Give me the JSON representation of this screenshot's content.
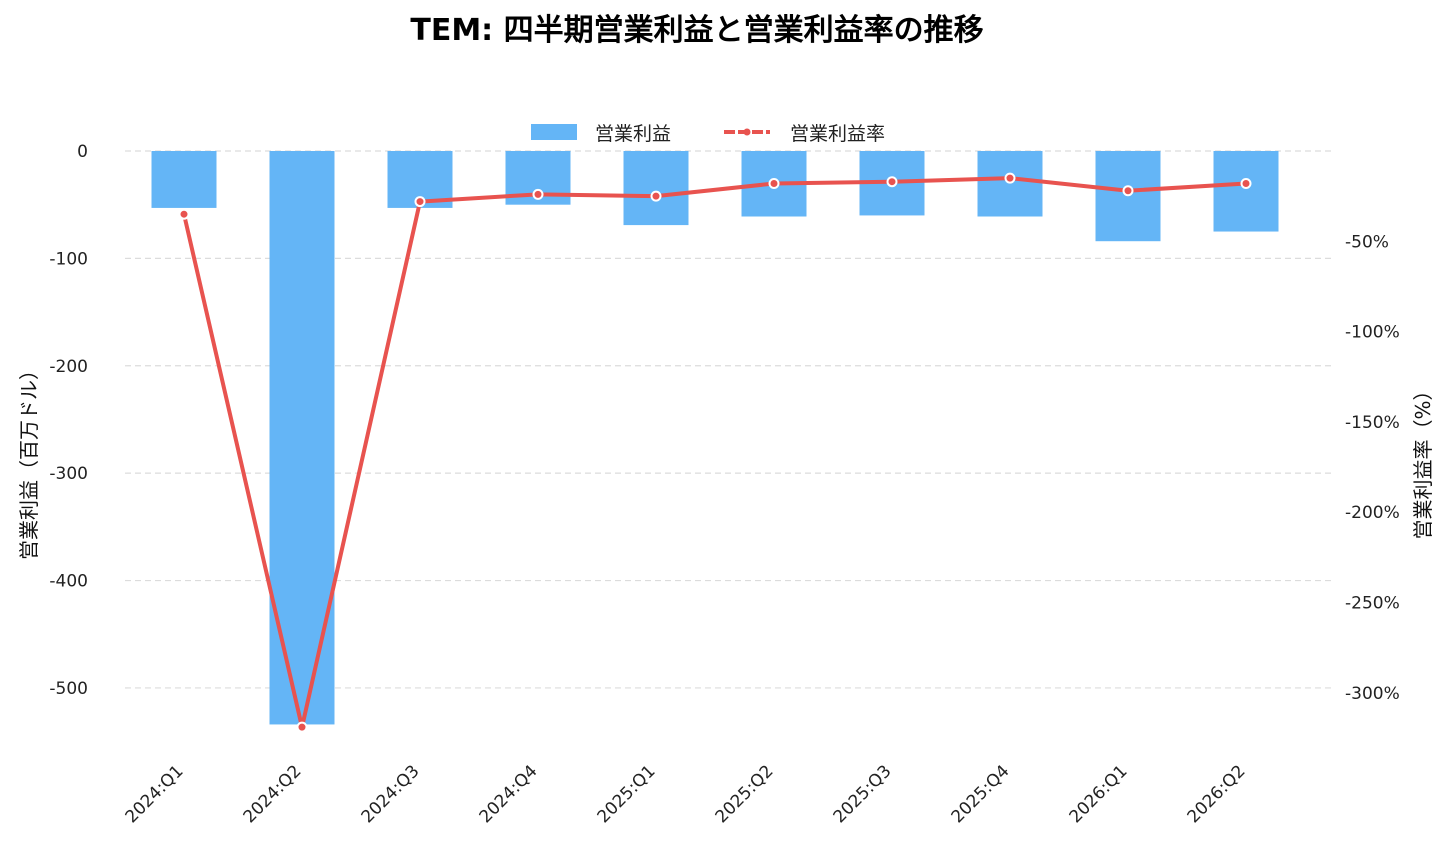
{
  "chart_data": {
    "type": "bar+line",
    "title": "TEM: 四半期営業利益と営業利益率の推移",
    "categories": [
      "2024:Q1",
      "2024:Q2",
      "2024:Q3",
      "2024:Q4",
      "2025:Q1",
      "2025:Q2",
      "2025:Q3",
      "2025:Q4",
      "2026:Q1",
      "2026:Q2"
    ],
    "series": [
      {
        "name": "営業利益",
        "type": "bar",
        "axis": "left",
        "color": "#64b5f6",
        "values": [
          -53,
          -534,
          -53,
          -50,
          -69,
          -61,
          -60,
          -61,
          -84,
          -75
        ]
      },
      {
        "name": "営業利益率",
        "type": "line",
        "axis": "right",
        "color": "#e8534f",
        "values": [
          -35,
          -319,
          -28,
          -24,
          -25,
          -18,
          -17,
          -15,
          -22,
          -18
        ]
      }
    ],
    "ylabel_left": "営業利益（百万ドル）",
    "ylabel_right": "営業利益率（%）",
    "ylim_left": [
      -555,
      0
    ],
    "yticks_left": [
      0,
      -100,
      -200,
      -300,
      -400,
      -500
    ],
    "ylim_right": [
      -330,
      0
    ],
    "yticks_right": [
      -50,
      -100,
      -150,
      -200,
      -250,
      -300
    ],
    "ytick_right_suffix": "%",
    "grid": "horizontal dashed",
    "legend": "top-center"
  }
}
